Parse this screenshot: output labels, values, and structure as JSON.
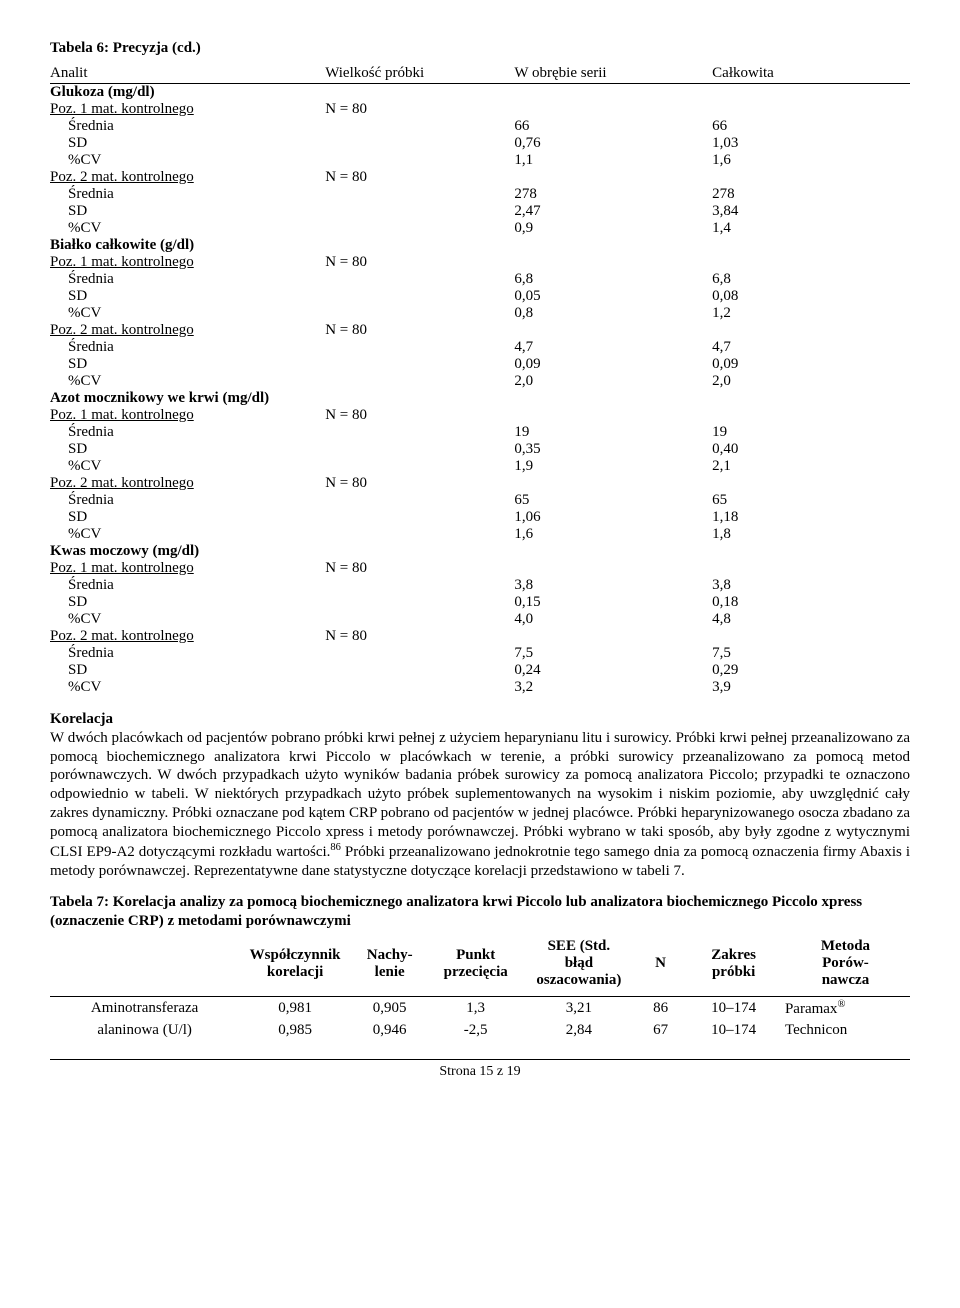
{
  "table6": {
    "title": "Tabela 6: Precyzja (cd.)",
    "headers": {
      "analit": "Analit",
      "size": "Wielkość próbki",
      "within": "W obrębie serii",
      "total": "Całkowita"
    },
    "groups": [
      {
        "heading": "Glukoza (mg/dl)",
        "levels": [
          {
            "label": "Poz. 1 mat. kontrolnego",
            "n": "N = 80",
            "rows": [
              {
                "param": "Średnia",
                "ws": "66",
                "tot": "66"
              },
              {
                "param": "SD",
                "ws": "0,76",
                "tot": "1,03"
              },
              {
                "param": "%CV",
                "ws": "1,1",
                "tot": "1,6"
              }
            ]
          },
          {
            "label": "Poz. 2 mat. kontrolnego",
            "n": "N = 80",
            "rows": [
              {
                "param": "Średnia",
                "ws": "278",
                "tot": "278"
              },
              {
                "param": "SD",
                "ws": "2,47",
                "tot": "3,84"
              },
              {
                "param": "%CV",
                "ws": "0,9",
                "tot": "1,4"
              }
            ]
          }
        ]
      },
      {
        "heading": "Białko całkowite (g/dl)",
        "levels": [
          {
            "label": "Poz. 1 mat. kontrolnego",
            "n": "N = 80",
            "rows": [
              {
                "param": "Średnia",
                "ws": "6,8",
                "tot": "6,8"
              },
              {
                "param": "SD",
                "ws": "0,05",
                "tot": "0,08"
              },
              {
                "param": "%CV",
                "ws": "0,8",
                "tot": "1,2"
              }
            ]
          },
          {
            "label": "Poz. 2 mat. kontrolnego",
            "n": "N = 80",
            "rows": [
              {
                "param": "Średnia",
                "ws": "4,7",
                "tot": "4,7"
              },
              {
                "param": "SD",
                "ws": "0,09",
                "tot": "0,09"
              },
              {
                "param": "%CV",
                "ws": "2,0",
                "tot": "2,0"
              }
            ]
          }
        ]
      },
      {
        "heading": "Azot mocznikowy we krwi (mg/dl)",
        "levels": [
          {
            "label": "Poz. 1 mat. kontrolnego",
            "n": "N = 80",
            "rows": [
              {
                "param": "Średnia",
                "ws": "19",
                "tot": "19"
              },
              {
                "param": "SD",
                "ws": "0,35",
                "tot": "0,40"
              },
              {
                "param": "%CV",
                "ws": "1,9",
                "tot": "2,1"
              }
            ]
          },
          {
            "label": "Poz. 2 mat. kontrolnego",
            "n": "N = 80",
            "rows": [
              {
                "param": "Średnia",
                "ws": "65",
                "tot": "65"
              },
              {
                "param": "SD",
                "ws": "1,06",
                "tot": "1,18"
              },
              {
                "param": "%CV",
                "ws": "1,6",
                "tot": "1,8"
              }
            ]
          }
        ]
      },
      {
        "heading": "Kwas moczowy (mg/dl)",
        "levels": [
          {
            "label": "Poz. 1 mat. kontrolnego",
            "n": "N = 80",
            "rows": [
              {
                "param": "Średnia",
                "ws": "3,8",
                "tot": "3,8"
              },
              {
                "param": "SD",
                "ws": "0,15",
                "tot": "0,18"
              },
              {
                "param": "%CV",
                "ws": "4,0",
                "tot": "4,8"
              }
            ]
          },
          {
            "label": "Poz. 2 mat. kontrolnego",
            "n": "N = 80",
            "rows": [
              {
                "param": "Średnia",
                "ws": "7,5",
                "tot": "7,5"
              },
              {
                "param": "SD",
                "ws": "0,24",
                "tot": "0,29"
              },
              {
                "param": "%CV",
                "ws": "3,2",
                "tot": "3,9"
              }
            ]
          }
        ]
      }
    ]
  },
  "korelacja": {
    "heading": "Korelacja",
    "text1": "W dwóch placówkach od pacjentów pobrano próbki krwi pełnej z użyciem heparynianu litu i surowicy. Próbki krwi pełnej przeanalizowano za pomocą biochemicznego analizatora krwi Piccolo w placówkach w terenie, a próbki surowicy przeanalizowano za pomocą metod porównawczych. W dwóch przypadkach użyto wyników badania próbek surowicy za pomocą analizatora Piccolo; przypadki te oznaczono odpowiednio w tabeli. W niektórych przypadkach użyto próbek suplementowanych na wysokim i niskim poziomie, aby uwzględnić cały zakres dynamiczny. Próbki oznaczane pod kątem CRP pobrano od pacjentów w jednej placówce. Próbki heparynizowanego osocza zbadano za pomocą analizatora biochemicznego Piccolo xpress i metody porównawczej. Próbki wybrano w taki sposób, aby były zgodne z wytycznymi CLSI EP9-A2 dotyczącymi rozkładu wartości.",
    "sup": "86",
    "text2": " Próbki przeanalizowano jednokrotnie tego samego dnia za pomocą oznaczenia firmy Abaxis i metody porównawczej. Reprezentatywne dane statystyczne dotyczące korelacji przedstawiono w tabeli 7."
  },
  "table7": {
    "title": "Tabela 7: Korelacja analizy za pomocą biochemicznego analizatora krwi Piccolo lub analizatora biochemicznego Piccolo xpress (oznaczenie CRP) z metodami porównawczymi",
    "headers": {
      "wk": "Współczynnik korelacji",
      "nach": "Nachy-\nlenie",
      "punkt": "Punkt przecięcia",
      "see": "SEE (Std. błąd oszacowania)",
      "n": "N",
      "zakres": "Zakres próbki",
      "metoda": "Metoda Porów-\nnawcza"
    },
    "row": {
      "analit_l1": "Aminotransferaza",
      "analit_l2": "alaninowa (U/l)",
      "r1": {
        "wk": "0,981",
        "nach": "0,905",
        "punkt": "1,3",
        "see": "3,21",
        "n": "86",
        "zakres": "10–174",
        "metoda": "Paramax"
      },
      "r2": {
        "wk": "0,985",
        "nach": "0,946",
        "punkt": "-2,5",
        "see": "2,84",
        "n": "67",
        "zakres": "10–174",
        "metoda": "Technicon"
      }
    }
  },
  "footer": "Strona 15 z 19"
}
